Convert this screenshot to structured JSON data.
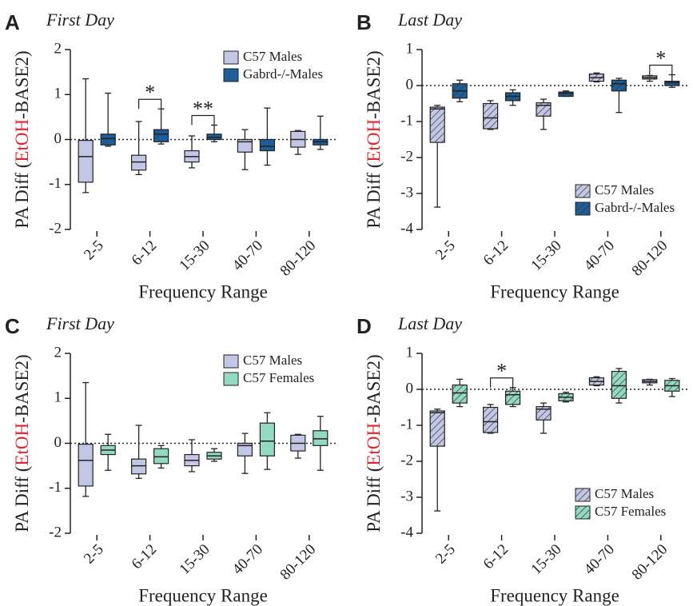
{
  "chart_data": [
    {
      "type": "box",
      "panel": "A",
      "title": "First Day",
      "ylabel_prefix": "PA Diff (",
      "ylabel_highlight": "EtOH",
      "ylabel_suffix": "-BASE2)",
      "highlight_color": "#e3232b",
      "xlabel": "Frequency Range",
      "categories": [
        "2-5",
        "6-12",
        "15-30",
        "40-70",
        "80-120"
      ],
      "ylim": [
        -2,
        2
      ],
      "yticks": [
        -2,
        -1,
        0,
        1,
        2
      ],
      "zero_line": true,
      "legend": "top-right",
      "series": [
        {
          "name": "C57 Males",
          "color": "#c3c7e5",
          "hatch": false,
          "values": [
            [
              -1.18,
              -0.95,
              -0.38,
              -0.02,
              1.35
            ],
            [
              -0.78,
              -0.68,
              -0.5,
              -0.35,
              0.4
            ],
            [
              -0.63,
              -0.5,
              -0.38,
              -0.25,
              0.08
            ],
            [
              -0.67,
              -0.28,
              -0.05,
              0.0,
              0.22
            ],
            [
              -0.33,
              -0.17,
              0.0,
              0.18,
              0.2
            ]
          ]
        },
        {
          "name": "Gabrd-/-Males",
          "color": "#1d5d99",
          "hatch": false,
          "values": [
            [
              -0.15,
              -0.12,
              0.02,
              0.12,
              1.03
            ],
            [
              -0.1,
              -0.05,
              0.12,
              0.22,
              0.68
            ],
            [
              -0.05,
              0.0,
              0.05,
              0.12,
              0.32
            ],
            [
              -0.57,
              -0.25,
              -0.15,
              0.0,
              0.7
            ],
            [
              -0.22,
              -0.12,
              -0.05,
              0.0,
              0.52
            ]
          ]
        }
      ],
      "annotations": [
        {
          "text": "*",
          "category": "6-12"
        },
        {
          "text": "**",
          "category": "15-30"
        }
      ]
    },
    {
      "type": "box",
      "panel": "B",
      "title": "Last Day",
      "ylabel_prefix": "PA Diff (",
      "ylabel_highlight": "EtOH",
      "ylabel_suffix": "-BASE2)",
      "highlight_color": "#e3232b",
      "xlabel": "Frequency Range",
      "categories": [
        "2-5",
        "6-12",
        "15-30",
        "40-70",
        "80-120"
      ],
      "ylim": [
        -4,
        1
      ],
      "yticks": [
        -4,
        -3,
        -2,
        -1,
        0,
        1
      ],
      "zero_line": true,
      "legend": "bottom-right",
      "series": [
        {
          "name": "C57 Males",
          "color": "#c3c7e5",
          "hatch": true,
          "values": [
            [
              -3.38,
              -1.58,
              -0.65,
              -0.6,
              -0.55
            ],
            [
              -1.22,
              -1.2,
              -0.9,
              -0.5,
              -0.42
            ],
            [
              -1.22,
              -0.85,
              -0.55,
              -0.48,
              -0.38
            ],
            [
              0.1,
              0.12,
              0.22,
              0.32,
              0.35
            ],
            [
              0.12,
              0.18,
              0.22,
              0.27,
              0.28
            ]
          ]
        },
        {
          "name": "Gabrd-/-Males",
          "color": "#1d5d99",
          "hatch": true,
          "values": [
            [
              -0.45,
              -0.35,
              -0.15,
              0.05,
              0.15
            ],
            [
              -0.55,
              -0.42,
              -0.3,
              -0.2,
              -0.12
            ],
            [
              -0.3,
              -0.3,
              -0.22,
              -0.18,
              -0.15
            ],
            [
              -0.75,
              -0.15,
              0.05,
              0.15,
              0.2
            ],
            [
              -0.05,
              0.0,
              0.08,
              0.12,
              0.3
            ]
          ]
        }
      ],
      "annotations": [
        {
          "text": "*",
          "category": "80-120"
        }
      ]
    },
    {
      "type": "box",
      "panel": "C",
      "title": "First Day",
      "ylabel_prefix": "PA Diff (",
      "ylabel_highlight": "EtOH",
      "ylabel_suffix": "-BASE2)",
      "highlight_color": "#e3232b",
      "xlabel": "Frequency Range",
      "categories": [
        "2-5",
        "6-12",
        "15-30",
        "40-70",
        "80-120"
      ],
      "ylim": [
        -2,
        2
      ],
      "yticks": [
        -2,
        -1,
        0,
        1,
        2
      ],
      "zero_line": true,
      "legend": "top-right",
      "series": [
        {
          "name": "C57 Males",
          "color": "#c3c7e5",
          "hatch": false,
          "values": [
            [
              -1.18,
              -0.95,
              -0.38,
              -0.02,
              1.35
            ],
            [
              -0.78,
              -0.68,
              -0.5,
              -0.35,
              0.4
            ],
            [
              -0.63,
              -0.5,
              -0.38,
              -0.25,
              0.08
            ],
            [
              -0.67,
              -0.28,
              -0.05,
              0.0,
              0.22
            ],
            [
              -0.33,
              -0.17,
              0.0,
              0.18,
              0.2
            ]
          ]
        },
        {
          "name": "C57 Females",
          "color": "#94d9c3",
          "hatch": false,
          "values": [
            [
              -0.6,
              -0.25,
              -0.15,
              -0.05,
              0.2
            ],
            [
              -0.55,
              -0.45,
              -0.3,
              -0.12,
              -0.05
            ],
            [
              -0.4,
              -0.35,
              -0.28,
              -0.2,
              -0.12
            ],
            [
              -0.58,
              -0.28,
              0.05,
              0.45,
              0.68
            ],
            [
              -0.6,
              -0.05,
              0.1,
              0.28,
              0.6
            ]
          ]
        }
      ],
      "annotations": []
    },
    {
      "type": "box",
      "panel": "D",
      "title": "Last Day",
      "ylabel_prefix": "PA Diff (",
      "ylabel_highlight": "EtOH",
      "ylabel_suffix": "-BASE2)",
      "highlight_color": "#e3232b",
      "xlabel": "Frequency Range",
      "categories": [
        "2-5",
        "6-12",
        "15-30",
        "40-70",
        "80-120"
      ],
      "ylim": [
        -4,
        1
      ],
      "yticks": [
        -4,
        -3,
        -2,
        -1,
        0,
        1
      ],
      "zero_line": true,
      "legend": "bottom-right",
      "series": [
        {
          "name": "C57 Males",
          "color": "#c3c7e5",
          "hatch": true,
          "values": [
            [
              -3.38,
              -1.58,
              -0.65,
              -0.6,
              -0.55
            ],
            [
              -1.22,
              -1.2,
              -0.9,
              -0.5,
              -0.42
            ],
            [
              -1.22,
              -0.85,
              -0.55,
              -0.48,
              -0.38
            ],
            [
              0.1,
              0.12,
              0.22,
              0.32,
              0.35
            ],
            [
              0.12,
              0.18,
              0.22,
              0.27,
              0.28
            ]
          ]
        },
        {
          "name": "C57 Females",
          "color": "#94d9c3",
          "hatch": true,
          "values": [
            [
              -0.48,
              -0.38,
              -0.1,
              0.12,
              0.28
            ],
            [
              -0.48,
              -0.42,
              -0.15,
              -0.05,
              0.05
            ],
            [
              -0.35,
              -0.32,
              -0.22,
              -0.12,
              -0.08
            ],
            [
              -0.38,
              -0.25,
              0.1,
              0.5,
              0.58
            ],
            [
              -0.2,
              -0.05,
              0.1,
              0.25,
              0.3
            ]
          ]
        }
      ],
      "annotations": [
        {
          "text": "*",
          "category": "6-12"
        }
      ]
    }
  ]
}
